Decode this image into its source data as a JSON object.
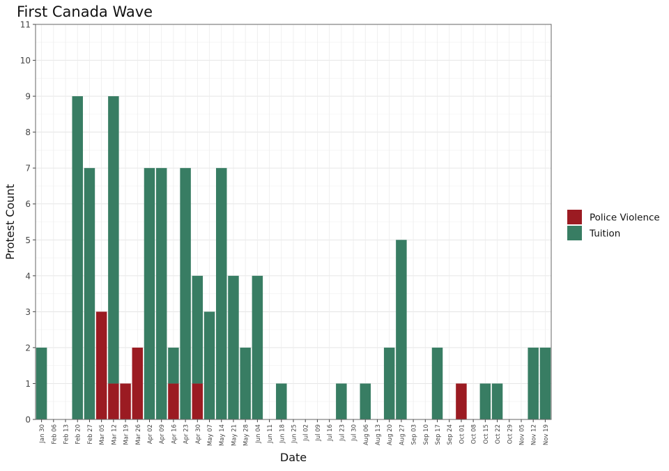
{
  "chart_data": {
    "type": "bar",
    "stacked": true,
    "title": "First Canada Wave",
    "xlabel": "Date",
    "ylabel": "Protest Count",
    "ylim": [
      0,
      11
    ],
    "yticks": [
      0,
      1,
      2,
      3,
      4,
      5,
      6,
      7,
      8,
      9,
      10,
      11
    ],
    "grid": true,
    "legend_position": "right",
    "categories": [
      "Jan 30",
      "Feb 06",
      "Feb 13",
      "Feb 20",
      "Feb 27",
      "Mar 05",
      "Mar 12",
      "Mar 19",
      "Mar 26",
      "Apr 02",
      "Apr 09",
      "Apr 16",
      "Apr 23",
      "Apr 30",
      "May 07",
      "May 14",
      "May 21",
      "May 28",
      "Jun 04",
      "Jun 11",
      "Jun 18",
      "Jun 25",
      "Jul 02",
      "Jul 09",
      "Jul 16",
      "Jul 23",
      "Jul 30",
      "Aug 06",
      "Aug 13",
      "Aug 20",
      "Aug 27",
      "Sep 03",
      "Sep 10",
      "Sep 17",
      "Sep 24",
      "Oct 01",
      "Oct 08",
      "Oct 15",
      "Oct 22",
      "Oct 29",
      "Nov 05",
      "Nov 12",
      "Nov 19"
    ],
    "series": [
      {
        "name": "Police Violence",
        "color": "#9B1B22",
        "values": [
          0,
          0,
          0,
          0,
          0,
          3,
          1,
          1,
          2,
          0,
          0,
          1,
          0,
          1,
          0,
          0,
          0,
          0,
          0,
          0,
          0,
          0,
          0,
          0,
          0,
          0,
          0,
          0,
          0,
          0,
          0,
          0,
          0,
          0,
          0,
          1,
          0,
          0,
          0,
          0,
          0,
          0,
          0
        ]
      },
      {
        "name": "Tuition",
        "color": "#387D63",
        "values": [
          2,
          0,
          0,
          9,
          7,
          0,
          8,
          0,
          0,
          7,
          7,
          1,
          7,
          3,
          3,
          7,
          4,
          2,
          4,
          0,
          1,
          0,
          0,
          0,
          0,
          1,
          0,
          1,
          0,
          2,
          5,
          0,
          0,
          2,
          0,
          0,
          0,
          1,
          1,
          0,
          0,
          2,
          2
        ]
      }
    ]
  }
}
